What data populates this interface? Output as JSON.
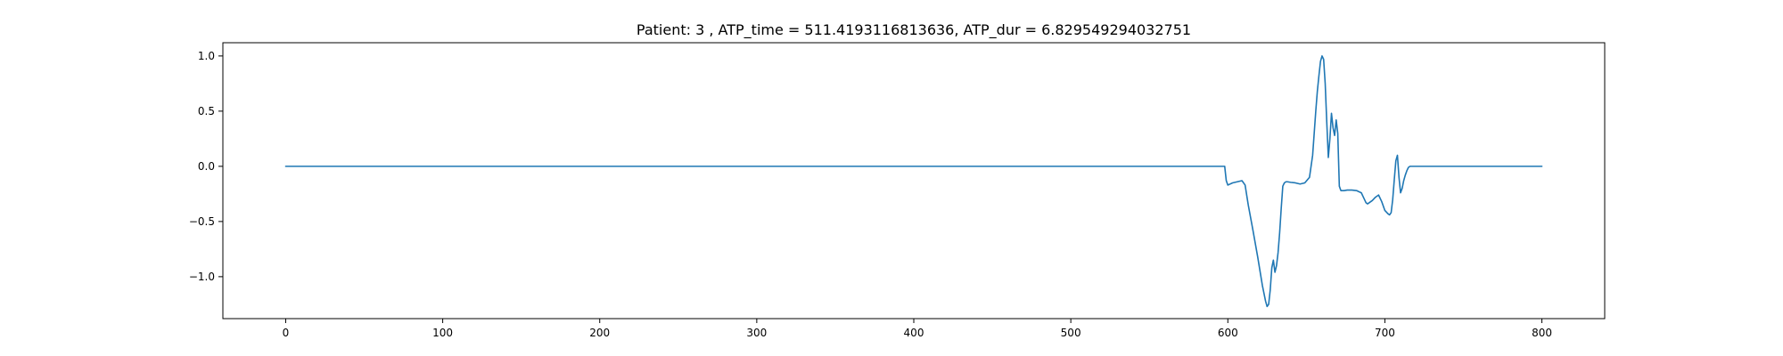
{
  "chart_data": {
    "type": "line",
    "title": "Patient: 3 , ATP_time = 511.4193116813636, ATP_dur = 6.829549294032751",
    "xlabel": "",
    "ylabel": "",
    "xlim": [
      -40,
      840
    ],
    "ylim": [
      -1.38,
      1.12
    ],
    "grid": false,
    "xticks": [
      0,
      100,
      200,
      300,
      400,
      500,
      600,
      700,
      800
    ],
    "xtick_labels": [
      "0",
      "100",
      "200",
      "300",
      "400",
      "500",
      "600",
      "700",
      "800"
    ],
    "yticks": [
      1.0,
      0.5,
      0.0,
      -0.5,
      -1.0
    ],
    "ytick_labels": [
      "1.0",
      "0.5",
      "0.0",
      "−0.5",
      "−1.0"
    ],
    "series": [
      {
        "color": "#1f77b4",
        "x": [
          0,
          100,
          200,
          300,
          400,
          500,
          598,
          599,
          600,
          603,
          606,
          609,
          611,
          613,
          616,
          619,
          622,
          624,
          625,
          626,
          627,
          628,
          629,
          630,
          631,
          632,
          633,
          634,
          635,
          636,
          637,
          638,
          640,
          643,
          646,
          649,
          652,
          654,
          655,
          656,
          657,
          658,
          659,
          660,
          661,
          662,
          663,
          664,
          665,
          666,
          667,
          668,
          669,
          670,
          671,
          672,
          673,
          674,
          676,
          679,
          682,
          685,
          687,
          688,
          689,
          690,
          692,
          694,
          696,
          698,
          700,
          702,
          703,
          704,
          705,
          706,
          707,
          708,
          709,
          710,
          711,
          712,
          713,
          714,
          715,
          716,
          717,
          718,
          719,
          720,
          722,
          730,
          760,
          800
        ],
        "y": [
          0,
          0,
          0,
          0,
          0,
          0,
          0,
          -0.13,
          -0.17,
          -0.15,
          -0.14,
          -0.13,
          -0.17,
          -0.35,
          -0.58,
          -0.82,
          -1.08,
          -1.22,
          -1.27,
          -1.25,
          -1.12,
          -0.92,
          -0.85,
          -0.96,
          -0.9,
          -0.78,
          -0.6,
          -0.38,
          -0.18,
          -0.15,
          -0.14,
          -0.14,
          -0.145,
          -0.15,
          -0.16,
          -0.15,
          -0.1,
          0.1,
          0.3,
          0.5,
          0.68,
          0.82,
          0.95,
          1.0,
          0.97,
          0.75,
          0.4,
          0.08,
          0.25,
          0.48,
          0.35,
          0.28,
          0.42,
          0.3,
          -0.18,
          -0.22,
          -0.22,
          -0.22,
          -0.215,
          -0.215,
          -0.22,
          -0.24,
          -0.3,
          -0.33,
          -0.34,
          -0.33,
          -0.31,
          -0.28,
          -0.26,
          -0.32,
          -0.4,
          -0.43,
          -0.44,
          -0.42,
          -0.3,
          -0.12,
          0.05,
          0.1,
          -0.1,
          -0.24,
          -0.2,
          -0.13,
          -0.08,
          -0.04,
          -0.01,
          0,
          0,
          0,
          0,
          0,
          0,
          0,
          0,
          0
        ]
      }
    ]
  }
}
